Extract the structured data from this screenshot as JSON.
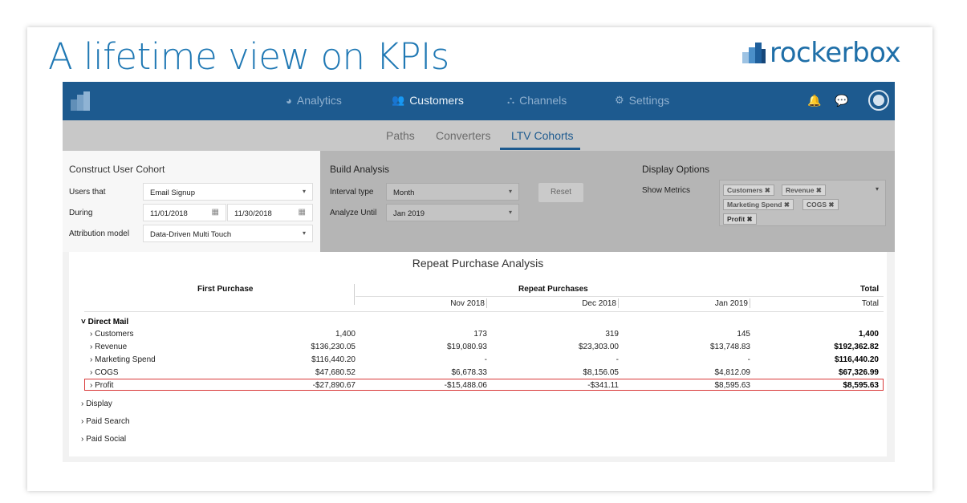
{
  "slide": {
    "headline": "A lifetime view on KPIs",
    "brand": "rockerbox",
    "colors": {
      "accent": "#1f78b4",
      "nav": "#1d5a8f",
      "highlight": "#d93a3a"
    }
  },
  "nav": {
    "items": [
      {
        "label": "Analytics",
        "icon": "pie-chart-icon",
        "glyph": "◕"
      },
      {
        "label": "Customers",
        "icon": "users-icon",
        "glyph": "👥"
      },
      {
        "label": "Channels",
        "icon": "sitemap-icon",
        "glyph": "⛬"
      },
      {
        "label": "Settings",
        "icon": "gears-icon",
        "glyph": "⚙"
      }
    ],
    "right": {
      "bell": "🔔",
      "chat": "💬",
      "user": "●"
    }
  },
  "subnav": {
    "tabs": [
      "Paths",
      "Converters",
      "LTV Cohorts"
    ],
    "active": "LTV Cohorts"
  },
  "cohort": {
    "title": "Construct User Cohort",
    "users_that_label": "Users that",
    "users_that_value": "Email Signup",
    "during_label": "During",
    "start_date": "11/01/2018",
    "end_date": "11/30/2018",
    "attribution_label": "Attribution model",
    "attribution_value": "Data-Driven Multi Touch"
  },
  "build": {
    "title": "Build Analysis",
    "interval_label": "Interval type",
    "interval_value": "Month",
    "until_label": "Analyze Until",
    "until_value": "Jan 2019",
    "reset_label": "Reset"
  },
  "display": {
    "title": "Display Options",
    "show_metrics_label": "Show Metrics",
    "chips": [
      "Customers ✖",
      "Revenue ✖",
      "Marketing Spend ✖",
      "COGS ✖",
      "Profit ✖"
    ]
  },
  "table": {
    "title": "Repeat Purchase Analysis",
    "first_purchase": "First Purchase",
    "repeat_purchases": "Repeat Purchases",
    "total_header": "Total",
    "months": [
      "Nov 2018",
      "Dec 2018",
      "Jan 2019"
    ],
    "total_sub": "Total",
    "group": "˅ Direct Mail",
    "rows": [
      {
        "label": "› Customers",
        "first": "1,400",
        "nov": "173",
        "dec": "319",
        "jan": "145",
        "total": "1,400"
      },
      {
        "label": "› Revenue",
        "first": "$136,230.05",
        "nov": "$19,080.93",
        "dec": "$23,303.00",
        "jan": "$13,748.83",
        "total": "$192,362.82"
      },
      {
        "label": "› Marketing Spend",
        "first": "$116,440.20",
        "nov": "-",
        "dec": "-",
        "jan": "-",
        "total": "$116,440.20"
      },
      {
        "label": "› COGS",
        "first": "$47,680.52",
        "nov": "$6,678.33",
        "dec": "$8,156.05",
        "jan": "$4,812.09",
        "total": "$67,326.99"
      },
      {
        "label": "› Profit",
        "first": "-$27,890.67",
        "nov": "-$15,488.06",
        "dec": "-$341.11",
        "jan": "$8,595.63",
        "total": "$8,595.63"
      }
    ],
    "other_groups": [
      "› Display",
      "› Paid Search",
      "› Paid Social"
    ]
  }
}
